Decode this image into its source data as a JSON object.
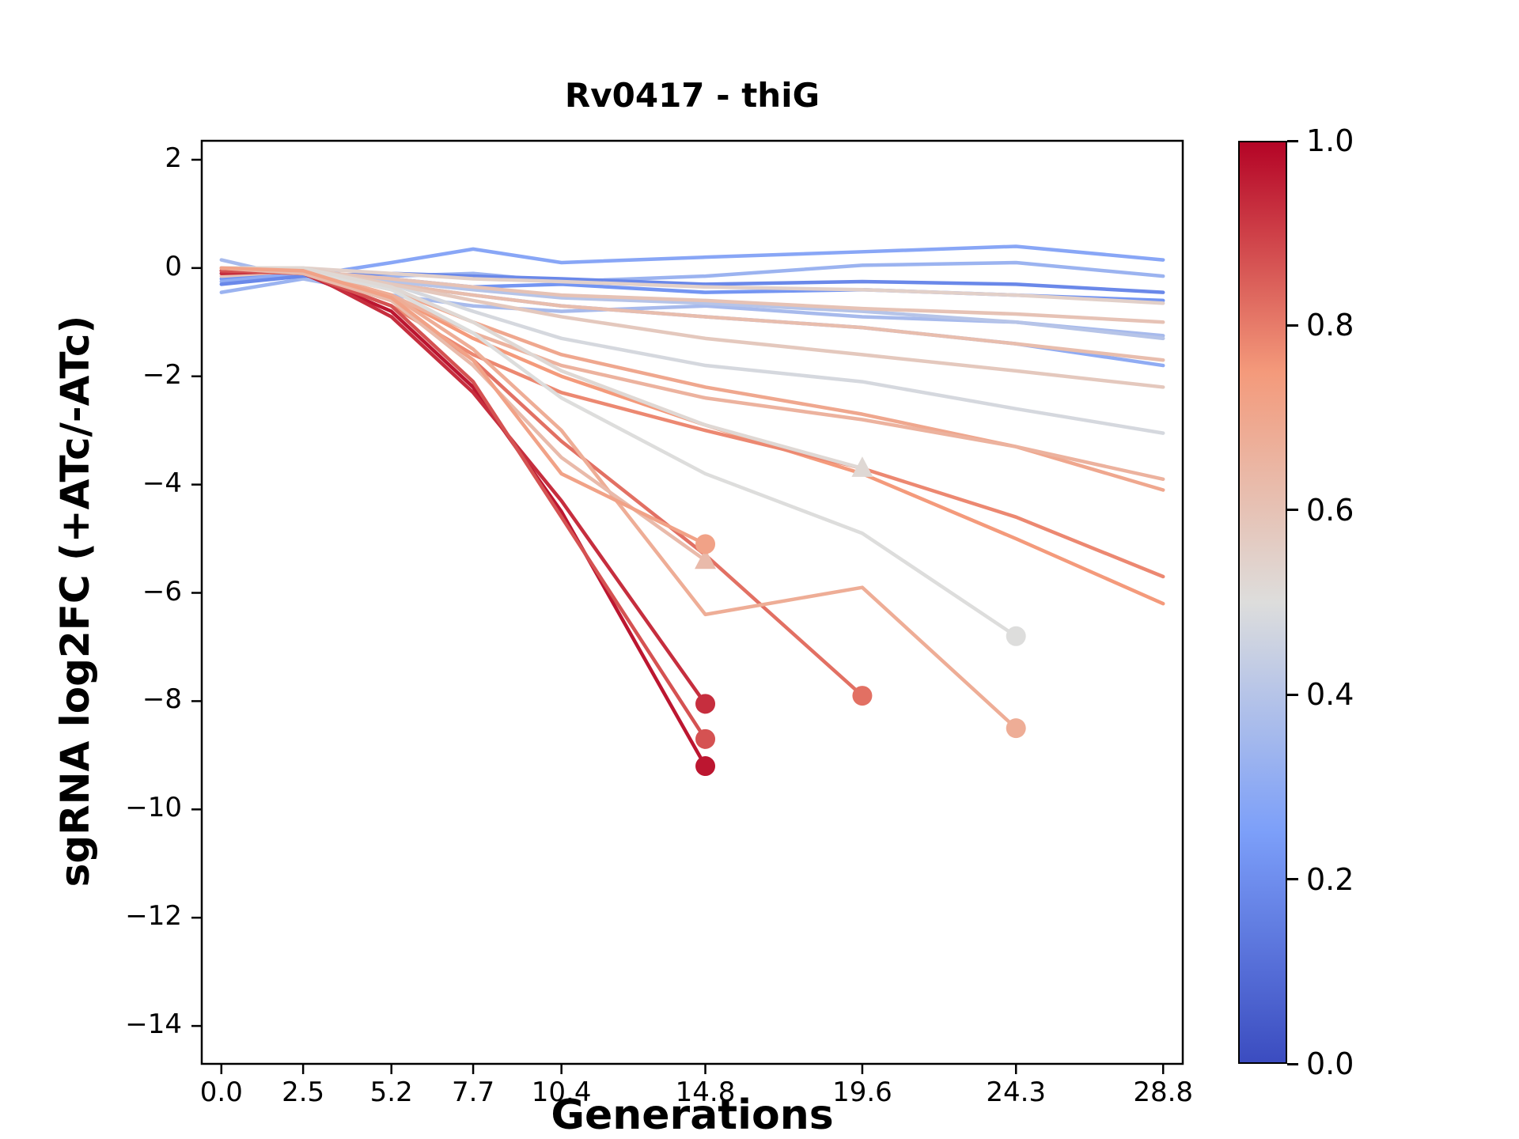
{
  "chart_data": {
    "type": "line",
    "title": "Rv0417 - thiG",
    "xlabel": "Generations",
    "ylabel": "sgRNA log2FC (+ATc/-ATc)",
    "xlim": [
      -0.6,
      29.4
    ],
    "ylim": [
      -14.7,
      2.35
    ],
    "grid": false,
    "colormap": "coolwarm",
    "x_ticks": [
      {
        "v": 0.0,
        "label": "0.0"
      },
      {
        "v": 2.5,
        "label": "2.5"
      },
      {
        "v": 5.2,
        "label": "5.2"
      },
      {
        "v": 7.7,
        "label": "7.7"
      },
      {
        "v": 10.4,
        "label": "10.4"
      },
      {
        "v": 14.8,
        "label": "14.8"
      },
      {
        "v": 19.6,
        "label": "19.6"
      },
      {
        "v": 24.3,
        "label": "24.3"
      },
      {
        "v": 28.8,
        "label": "28.8"
      }
    ],
    "y_ticks": [
      {
        "v": 2,
        "label": "2"
      },
      {
        "v": 0,
        "label": "0"
      },
      {
        "v": -2,
        "label": "−2"
      },
      {
        "v": -4,
        "label": "−4"
      },
      {
        "v": -6,
        "label": "−6"
      },
      {
        "v": -8,
        "label": "−8"
      },
      {
        "v": -10,
        "label": "−10"
      },
      {
        "v": -12,
        "label": "−12"
      },
      {
        "v": -14,
        "label": "−14"
      }
    ],
    "colorbar": {
      "min": 0.0,
      "max": 1.0,
      "ticks": [
        {
          "v": 0.0,
          "label": "0.0"
        },
        {
          "v": 0.2,
          "label": "0.2"
        },
        {
          "v": 0.4,
          "label": "0.4"
        },
        {
          "v": 0.6,
          "label": "0.6"
        },
        {
          "v": 0.8,
          "label": "0.8"
        },
        {
          "v": 1.0,
          "label": "1.0"
        }
      ]
    },
    "series": [
      {
        "value": 0.28,
        "marker": null,
        "x": [
          0,
          2.5,
          5.2,
          7.7,
          10.4,
          14.8,
          19.6,
          24.3,
          28.8
        ],
        "y": [
          -0.1,
          -0.15,
          0.1,
          0.35,
          0.1,
          0.2,
          0.3,
          0.4,
          0.15
        ]
      },
      {
        "value": 0.33,
        "marker": null,
        "x": [
          0,
          2.5,
          5.2,
          7.7,
          10.4,
          14.8,
          19.6,
          24.3,
          28.8
        ],
        "y": [
          -0.45,
          -0.2,
          -0.15,
          -0.1,
          -0.25,
          -0.15,
          0.05,
          0.1,
          -0.15
        ]
      },
      {
        "value": 0.22,
        "marker": null,
        "x": [
          0,
          2.5,
          5.2,
          7.7,
          10.4,
          14.8,
          19.6,
          24.3,
          28.8
        ],
        "y": [
          -0.2,
          -0.1,
          -0.2,
          -0.35,
          -0.3,
          -0.45,
          -0.4,
          -0.5,
          -0.6
        ]
      },
      {
        "value": 0.36,
        "marker": null,
        "x": [
          0,
          2.5,
          5.2,
          7.7,
          10.4,
          14.8,
          19.6,
          24.3,
          28.8
        ],
        "y": [
          0.15,
          -0.2,
          -0.5,
          -0.7,
          -0.8,
          -0.7,
          -0.9,
          -1.0,
          -1.25
        ]
      },
      {
        "value": 0.3,
        "marker": null,
        "x": [
          0,
          2.5,
          5.2,
          7.7,
          10.4,
          14.8,
          19.6,
          24.3,
          28.8
        ],
        "y": [
          -0.25,
          -0.1,
          -0.3,
          -0.5,
          -0.7,
          -0.9,
          -1.1,
          -1.4,
          -1.8
        ]
      },
      {
        "value": 0.4,
        "marker": null,
        "x": [
          0,
          2.5,
          5.2,
          7.7,
          10.4,
          14.8,
          19.6,
          24.3,
          28.8
        ],
        "y": [
          -0.05,
          -0.1,
          -0.25,
          -0.4,
          -0.55,
          -0.65,
          -0.8,
          -1.0,
          -1.3
        ]
      },
      {
        "value": 0.18,
        "marker": null,
        "x": [
          0,
          2.5,
          5.2,
          7.7,
          10.4,
          14.8,
          19.6,
          24.3,
          28.8
        ],
        "y": [
          -0.3,
          -0.15,
          -0.1,
          -0.15,
          -0.2,
          -0.3,
          -0.25,
          -0.3,
          -0.45
        ]
      },
      {
        "value": 0.55,
        "marker": null,
        "x": [
          0,
          2.5,
          5.2,
          7.7,
          10.4,
          14.8,
          19.6,
          24.3,
          28.8
        ],
        "y": [
          -0.05,
          0.0,
          -0.1,
          -0.2,
          -0.25,
          -0.35,
          -0.4,
          -0.5,
          -0.65
        ]
      },
      {
        "value": 0.6,
        "marker": null,
        "x": [
          0,
          2.5,
          5.2,
          7.7,
          10.4,
          14.8,
          19.6,
          24.3,
          28.8
        ],
        "y": [
          -0.15,
          -0.05,
          -0.2,
          -0.35,
          -0.5,
          -0.6,
          -0.75,
          -0.85,
          -1.0
        ]
      },
      {
        "value": 0.62,
        "marker": null,
        "x": [
          0,
          2.5,
          5.2,
          7.7,
          10.4,
          14.8,
          19.6,
          24.3,
          28.8
        ],
        "y": [
          0.0,
          -0.1,
          -0.3,
          -0.5,
          -0.7,
          -0.9,
          -1.1,
          -1.4,
          -1.7
        ]
      },
      {
        "value": 0.75,
        "marker": null,
        "x": [
          0,
          2.5,
          5.2,
          7.7,
          10.4,
          14.8,
          19.6,
          24.3,
          28.8
        ],
        "y": [
          0.0,
          -0.05,
          -0.5,
          -1.3,
          -2.0,
          -2.9,
          -3.8,
          -5.0,
          -6.2
        ]
      },
      {
        "value": 0.78,
        "marker": null,
        "x": [
          0,
          2.5,
          5.2,
          7.7,
          10.4,
          14.8,
          19.6,
          24.3,
          28.8
        ],
        "y": [
          0.0,
          -0.1,
          -0.7,
          -1.6,
          -2.3,
          -3.0,
          -3.7,
          -4.6,
          -5.7
        ]
      },
      {
        "value": 0.7,
        "marker": null,
        "x": [
          0,
          2.5,
          5.2,
          7.7,
          10.4,
          14.8,
          19.6,
          24.3,
          28.8
        ],
        "y": [
          0.0,
          -0.05,
          -0.4,
          -1.0,
          -1.6,
          -2.2,
          -2.7,
          -3.3,
          -4.1
        ]
      },
      {
        "value": 0.66,
        "marker": null,
        "x": [
          0,
          2.5,
          5.2,
          7.7,
          10.4,
          14.8,
          19.6,
          24.3,
          28.8
        ],
        "y": [
          0.0,
          -0.1,
          -0.5,
          -1.2,
          -1.8,
          -2.4,
          -2.8,
          -3.3,
          -3.9
        ]
      },
      {
        "value": 0.48,
        "marker": null,
        "x": [
          0,
          2.5,
          5.2,
          7.7,
          10.4,
          14.8,
          19.6,
          24.3,
          28.8
        ],
        "y": [
          0.0,
          -0.05,
          -0.3,
          -0.8,
          -1.3,
          -1.8,
          -2.1,
          -2.6,
          -3.05
        ]
      },
      {
        "value": 0.58,
        "marker": null,
        "x": [
          0,
          2.5,
          5.2,
          7.7,
          10.4,
          14.8,
          19.6,
          24.3,
          28.8
        ],
        "y": [
          0.0,
          0.0,
          -0.3,
          -0.6,
          -0.9,
          -1.3,
          -1.6,
          -1.9,
          -2.2
        ]
      },
      {
        "value": 0.97,
        "marker": "circle",
        "x": [
          0,
          2.5,
          5.2,
          7.7,
          10.4,
          14.8
        ],
        "y": [
          -0.05,
          -0.1,
          -0.8,
          -2.2,
          -4.5,
          -9.2
        ]
      },
      {
        "value": 0.93,
        "marker": "circle",
        "x": [
          0,
          2.5,
          5.2,
          7.7,
          10.4,
          14.8
        ],
        "y": [
          -0.1,
          -0.05,
          -0.9,
          -2.3,
          -4.3,
          -8.05
        ]
      },
      {
        "value": 0.87,
        "marker": "circle",
        "x": [
          0,
          2.5,
          5.2,
          7.7,
          10.4,
          14.8
        ],
        "y": [
          -0.05,
          -0.1,
          -0.7,
          -2.1,
          -4.6,
          -8.7
        ]
      },
      {
        "value": 0.82,
        "marker": "circle",
        "x": [
          0,
          2.5,
          5.2,
          7.7,
          10.4,
          14.8,
          19.6
        ],
        "y": [
          0.0,
          -0.1,
          -0.6,
          -1.7,
          -3.2,
          -5.3,
          -7.9
        ]
      },
      {
        "value": 0.68,
        "marker": "circle",
        "x": [
          0,
          2.5,
          5.2,
          7.7,
          10.4,
          14.8,
          19.6,
          24.3
        ],
        "y": [
          0.0,
          -0.05,
          -0.5,
          -1.5,
          -3.0,
          -6.4,
          -5.9,
          -8.5
        ]
      },
      {
        "value": 0.5,
        "marker": "circle",
        "x": [
          0,
          2.5,
          5.2,
          7.7,
          10.4,
          14.8,
          19.6,
          24.3
        ],
        "y": [
          0.0,
          -0.05,
          -0.4,
          -1.2,
          -2.4,
          -3.8,
          -4.9,
          -6.8
        ]
      },
      {
        "value": 0.52,
        "marker": "triangle",
        "x": [
          0,
          2.5,
          5.2,
          7.7,
          10.4,
          14.8,
          19.6
        ],
        "y": [
          0.0,
          0.0,
          -0.35,
          -1.0,
          -1.9,
          -2.9,
          -3.7
        ]
      },
      {
        "value": 0.63,
        "marker": "triangle",
        "x": [
          0,
          2.5,
          5.2,
          7.7,
          10.4,
          14.8
        ],
        "y": [
          0.0,
          -0.1,
          -0.6,
          -1.8,
          -3.5,
          -5.4
        ]
      },
      {
        "value": 0.72,
        "marker": "circle",
        "x": [
          0,
          2.5,
          5.2,
          7.7,
          10.4,
          14.8
        ],
        "y": [
          0.0,
          -0.05,
          -0.55,
          -1.7,
          -3.8,
          -5.1
        ]
      }
    ]
  }
}
